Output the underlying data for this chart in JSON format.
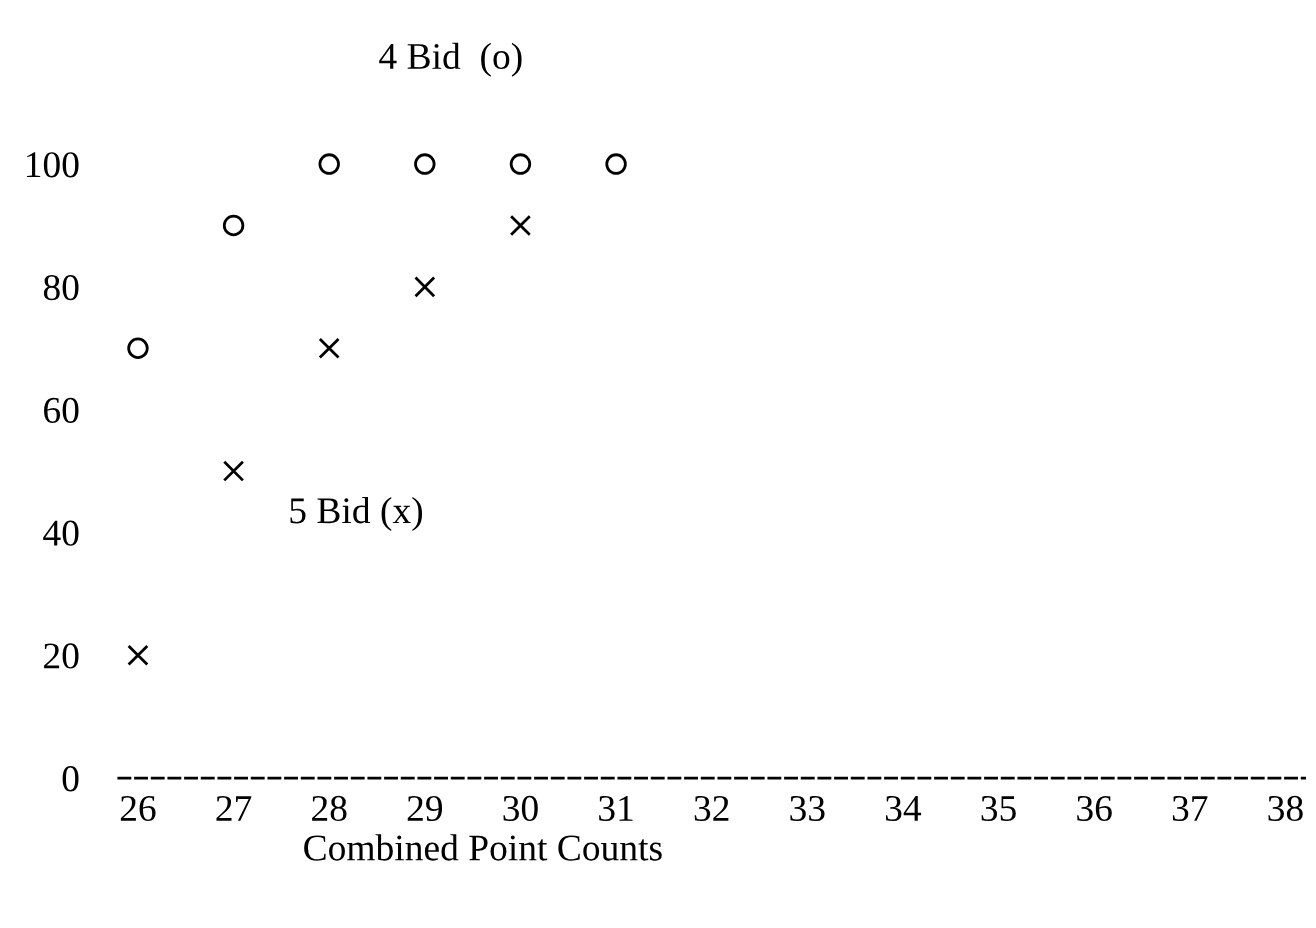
{
  "chart_data": {
    "type": "scatter",
    "xlabel": "Combined Point Counts",
    "series": [
      {
        "name": "4 Bid  (o)",
        "color": "#000000",
        "marker": "circle",
        "x": [
          26,
          27,
          28,
          29,
          30,
          31
        ],
        "values": [
          70,
          90,
          100,
          100,
          100,
          100
        ]
      },
      {
        "name": "5 Bid (x)",
        "color": "#000000",
        "marker": "cross",
        "x": [
          26,
          27,
          28,
          29,
          30
        ],
        "values": [
          20,
          50,
          70,
          80,
          90
        ]
      }
    ],
    "xlim": [
      25.8,
      38.2
    ],
    "xticks": [
      26,
      27,
      28,
      29,
      30,
      31,
      32,
      33,
      34,
      35,
      36,
      37,
      38
    ],
    "ylim": [
      0,
      100
    ],
    "yticks": [
      0,
      20,
      40,
      60,
      80,
      100
    ],
    "grid": false,
    "legend": false
  }
}
